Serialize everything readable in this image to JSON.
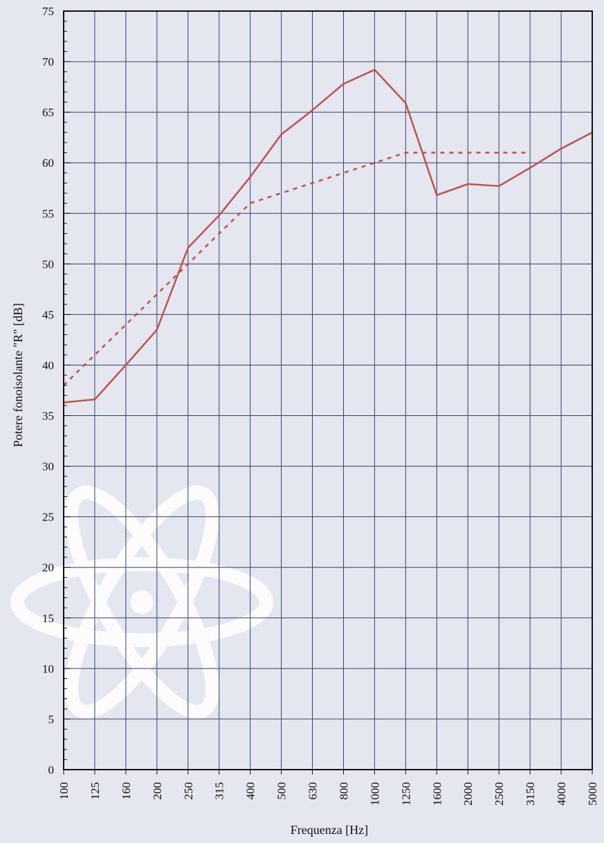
{
  "chart_data": {
    "type": "line",
    "title": "",
    "xlabel": "Frequenza [Hz]",
    "ylabel": "Potere fonoisolante \"R\" [dB]",
    "ylim": [
      0,
      75
    ],
    "y_ticks": [
      0,
      5,
      10,
      15,
      20,
      25,
      30,
      35,
      40,
      45,
      50,
      55,
      60,
      65,
      70,
      75
    ],
    "categories": [
      "100",
      "125",
      "160",
      "200",
      "250",
      "315",
      "400",
      "500",
      "630",
      "800",
      "1000",
      "1250",
      "1600",
      "2000",
      "2500",
      "3150",
      "4000",
      "5000"
    ],
    "grid": true,
    "legend": "none",
    "series": [
      {
        "style": "solid",
        "color": "#c0504d",
        "values": [
          36.3,
          36.6,
          40.0,
          43.5,
          51.6,
          54.8,
          58.6,
          62.8,
          65.2,
          67.8,
          69.2,
          65.9,
          56.8,
          57.9,
          57.7,
          59.5,
          61.4,
          63.0
        ]
      },
      {
        "style": "dotted",
        "color": "#c0504d",
        "values": [
          38.0,
          41.0,
          44.0,
          47.0,
          50.0,
          53.0,
          56.0,
          57.0,
          58.0,
          59.0,
          60.0,
          61.0,
          61.0,
          61.0,
          61.0,
          61.0,
          null,
          null
        ]
      }
    ]
  }
}
